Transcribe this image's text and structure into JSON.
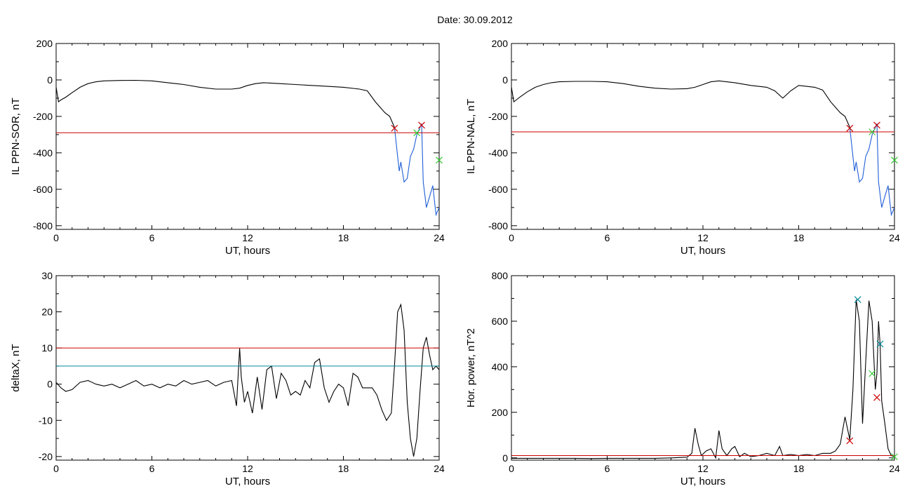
{
  "figure": {
    "title": "Date:  30.09.2012"
  },
  "chart_data": [
    {
      "type": "line",
      "xlabel": "UT, hours",
      "ylabel": "IL PPN-SOR, nT",
      "xlim": [
        0,
        24
      ],
      "ylim": [
        -820,
        200
      ],
      "xticks": [
        0,
        6,
        12,
        18,
        24
      ],
      "yticks": [
        -800,
        -600,
        -400,
        -200,
        0,
        200
      ],
      "series": [
        {
          "color": "#000000",
          "x": [
            0,
            0.15,
            0.3,
            0.6,
            1.0,
            1.5,
            2.0,
            2.5,
            3.0,
            4.0,
            5.0,
            6.0,
            7.0,
            8.0,
            9.0,
            10.0,
            11.0,
            11.5,
            12.0,
            12.5,
            13.0,
            14.0,
            15.0,
            16.0,
            17.0,
            18.0,
            19.0,
            19.5,
            20.0,
            20.3,
            20.6,
            20.9,
            21.2
          ],
          "y": [
            -40,
            -120,
            -110,
            -95,
            -70,
            -40,
            -20,
            -10,
            -5,
            -3,
            -2,
            -5,
            -15,
            -25,
            -40,
            -50,
            -50,
            -45,
            -30,
            -20,
            -15,
            -20,
            -25,
            -30,
            -35,
            -40,
            -50,
            -60,
            -120,
            -150,
            -180,
            -200,
            -260
          ]
        },
        {
          "color": "#1f5fd6",
          "x": [
            21.2,
            21.4,
            21.5,
            21.6,
            21.8,
            22.0,
            22.2,
            22.4,
            22.6,
            22.8,
            22.9,
            23.0,
            23.2,
            23.4,
            23.6,
            23.8,
            24.0
          ],
          "y": [
            -260,
            -420,
            -500,
            -450,
            -560,
            -540,
            -420,
            -380,
            -300,
            -260,
            -240,
            -560,
            -700,
            -640,
            -580,
            -740,
            -700
          ]
        }
      ],
      "thresholds": [
        {
          "y": -290,
          "color": "#cc0000"
        }
      ],
      "markers": [
        {
          "x": 21.2,
          "y": -265,
          "color": "#cc0000"
        },
        {
          "x": 22.6,
          "y": -290,
          "color": "#33cc33"
        },
        {
          "x": 22.9,
          "y": -248,
          "color": "#cc0000"
        },
        {
          "x": 24.0,
          "y": -440,
          "color": "#33cc33"
        }
      ]
    },
    {
      "type": "line",
      "xlabel": "UT, hours",
      "ylabel": "IL PPN-NAL, nT",
      "xlim": [
        0,
        24
      ],
      "ylim": [
        -820,
        200
      ],
      "xticks": [
        0,
        6,
        12,
        18,
        24
      ],
      "yticks": [
        -800,
        -600,
        -400,
        -200,
        0,
        200
      ],
      "series": [
        {
          "color": "#000000",
          "x": [
            0,
            0.15,
            0.3,
            0.6,
            1.0,
            1.5,
            2.0,
            2.5,
            3.0,
            4.0,
            5.0,
            6.0,
            7.0,
            8.0,
            9.0,
            10.0,
            11.0,
            11.5,
            12.0,
            12.5,
            13.0,
            14.0,
            15.0,
            16.0,
            16.5,
            17.0,
            17.5,
            18.0,
            19.0,
            19.5,
            20.0,
            20.3,
            20.6,
            20.9,
            21.2
          ],
          "y": [
            -40,
            -120,
            -110,
            -90,
            -65,
            -40,
            -25,
            -15,
            -10,
            -8,
            -8,
            -10,
            -20,
            -35,
            -45,
            -50,
            -48,
            -40,
            -25,
            -10,
            -5,
            -15,
            -30,
            -40,
            -60,
            -100,
            -60,
            -30,
            -40,
            -55,
            -120,
            -150,
            -180,
            -200,
            -260
          ]
        },
        {
          "color": "#1f5fd6",
          "x": [
            21.2,
            21.4,
            21.5,
            21.6,
            21.8,
            22.0,
            22.2,
            22.4,
            22.6,
            22.8,
            22.9,
            23.0,
            23.2,
            23.4,
            23.6,
            23.8,
            24.0
          ],
          "y": [
            -260,
            -420,
            -500,
            -450,
            -560,
            -540,
            -420,
            -380,
            -300,
            -260,
            -240,
            -560,
            -700,
            -640,
            -580,
            -740,
            -700
          ]
        }
      ],
      "thresholds": [
        {
          "y": -285,
          "color": "#cc0000"
        }
      ],
      "markers": [
        {
          "x": 21.2,
          "y": -265,
          "color": "#cc0000"
        },
        {
          "x": 22.6,
          "y": -285,
          "color": "#33cc33"
        },
        {
          "x": 22.9,
          "y": -248,
          "color": "#cc0000"
        },
        {
          "x": 24.0,
          "y": -440,
          "color": "#33cc33"
        }
      ]
    },
    {
      "type": "line",
      "xlabel": "UT, hours",
      "ylabel": "deltaX, nT",
      "xlim": [
        0,
        24
      ],
      "ylim": [
        -21,
        30
      ],
      "xticks": [
        0,
        6,
        12,
        18,
        24
      ],
      "yticks": [
        -20,
        -10,
        0,
        10,
        20,
        30
      ],
      "series": [
        {
          "color": "#000000",
          "x": [
            0,
            0.3,
            0.6,
            1.0,
            1.5,
            2.0,
            2.5,
            3.0,
            3.5,
            4.0,
            4.5,
            5.0,
            5.5,
            6.0,
            6.5,
            7.0,
            7.5,
            8.0,
            8.5,
            9.0,
            9.5,
            10.0,
            10.5,
            11.0,
            11.3,
            11.5,
            11.6,
            11.8,
            12.0,
            12.3,
            12.6,
            12.9,
            13.2,
            13.5,
            13.8,
            14.1,
            14.4,
            14.7,
            15.0,
            15.3,
            15.6,
            15.9,
            16.2,
            16.5,
            16.8,
            17.1,
            17.4,
            17.7,
            18.0,
            18.3,
            18.6,
            18.9,
            19.2,
            19.5,
            19.8,
            20.1,
            20.4,
            20.7,
            21.0,
            21.2,
            21.4,
            21.6,
            21.8,
            22.0,
            22.2,
            22.4,
            22.6,
            22.8,
            23.0,
            23.2,
            23.4,
            23.6,
            23.8,
            24.0
          ],
          "y": [
            0.5,
            -1,
            -2,
            -1.5,
            0.5,
            1,
            0,
            -0.5,
            0,
            -1,
            0,
            1,
            -0.5,
            0,
            -1,
            0,
            -0.5,
            1,
            0,
            0.5,
            1,
            -0.5,
            0.5,
            1,
            -6,
            10,
            2,
            -5,
            -2,
            -8,
            2,
            -7,
            4,
            5,
            -4,
            3,
            1,
            -3,
            -2,
            -3,
            1,
            -1,
            6,
            7,
            -1,
            -5,
            -2,
            0,
            -1,
            -6,
            3,
            2,
            -1,
            -1,
            -1,
            -3,
            -7,
            -10,
            -8,
            5,
            20,
            22,
            15,
            -5,
            -15,
            -20,
            -15,
            -2,
            10,
            13,
            8,
            4,
            5,
            4
          ]
        }
      ],
      "thresholds": [
        {
          "y": 10,
          "color": "#cc0000"
        },
        {
          "y": 5,
          "color": "#008b9a"
        }
      ],
      "markers": []
    },
    {
      "type": "line",
      "xlabel": "UT, hours",
      "ylabel": "Hor. power, nT^2",
      "xlim": [
        0,
        24
      ],
      "ylim": [
        -10,
        800
      ],
      "xticks": [
        0,
        6,
        12,
        18,
        24
      ],
      "yticks": [
        0,
        200,
        400,
        600,
        800
      ],
      "series": [
        {
          "color": "#000000",
          "x": [
            0,
            1,
            2,
            3,
            4,
            5,
            6,
            7,
            8,
            9,
            10,
            11,
            11.3,
            11.5,
            11.7,
            11.9,
            12.2,
            12.5,
            12.8,
            13.0,
            13.2,
            13.5,
            13.8,
            14.0,
            14.3,
            14.6,
            15.0,
            15.5,
            16.0,
            16.5,
            16.8,
            17.0,
            17.5,
            18.0,
            18.5,
            19.0,
            19.5,
            20.0,
            20.3,
            20.6,
            20.9,
            21.2,
            21.4,
            21.6,
            21.8,
            22.0,
            22.2,
            22.4,
            22.6,
            22.8,
            22.9,
            23.0,
            23.1,
            23.2,
            23.4,
            23.6,
            23.8,
            24.0
          ],
          "y": [
            -2,
            -2,
            -2,
            -2,
            -2,
            -3,
            -2,
            -2,
            -2,
            -2,
            0,
            3,
            20,
            130,
            60,
            10,
            30,
            40,
            0,
            120,
            40,
            10,
            40,
            50,
            5,
            20,
            5,
            10,
            20,
            10,
            50,
            10,
            15,
            10,
            15,
            10,
            20,
            20,
            30,
            60,
            180,
            80,
            300,
            695,
            600,
            150,
            420,
            690,
            600,
            300,
            370,
            600,
            500,
            250,
            150,
            40,
            10,
            5
          ]
        }
      ],
      "thresholds": [
        {
          "y": 10,
          "color": "#cc0000"
        }
      ],
      "markers": [
        {
          "x": 21.2,
          "y": 75,
          "color": "#cc0000"
        },
        {
          "x": 21.7,
          "y": 695,
          "color": "#008b9a"
        },
        {
          "x": 22.6,
          "y": 370,
          "color": "#33cc33"
        },
        {
          "x": 22.9,
          "y": 265,
          "color": "#cc0000"
        },
        {
          "x": 23.1,
          "y": 500,
          "color": "#008b9a"
        },
        {
          "x": 24.0,
          "y": 5,
          "color": "#33cc33"
        }
      ]
    }
  ]
}
